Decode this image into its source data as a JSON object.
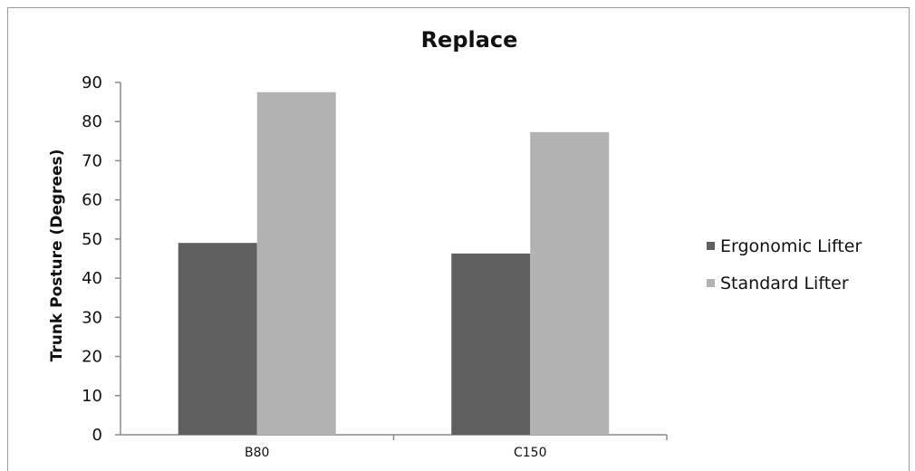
{
  "chart_data": {
    "type": "bar",
    "title": "Replace",
    "xlabel": "",
    "ylabel": "Trunk Posture (Degrees)",
    "categories": [
      "B80",
      "C150"
    ],
    "series": [
      {
        "name": "Ergonomic Lifter",
        "values": [
          49,
          46.3
        ],
        "color": "#5f5f5f"
      },
      {
        "name": "Standard Lifter",
        "values": [
          87.5,
          77.3
        ],
        "color": "#b2b2b2"
      }
    ],
    "ylim": [
      0,
      90
    ],
    "yticks": [
      0,
      10,
      20,
      30,
      40,
      50,
      60,
      70,
      80,
      90
    ],
    "grid": false,
    "legend": "right"
  }
}
